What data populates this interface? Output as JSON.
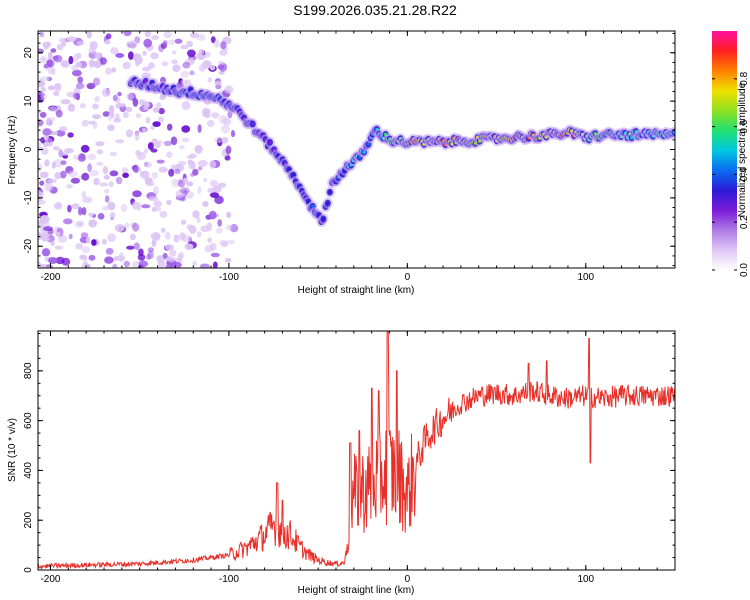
{
  "title": "S199.2026.035.21.28.R22",
  "colors": {
    "signal": "#e8302a",
    "colorscale": [
      "#ffffff",
      "#e0c6f6",
      "#b07ae8",
      "#7a1bd8",
      "#2a1bd8",
      "#0a6cf0",
      "#00c8e0",
      "#20e070",
      "#90e020",
      "#f0e000",
      "#ff8000",
      "#ff2020",
      "#ff10a0"
    ]
  },
  "chart_data": [
    {
      "type": "heatmap",
      "xlabel": "Height of straight line (km)",
      "ylabel": "Frequency (Hz)",
      "xlim": [
        -207,
        150
      ],
      "ylim": [
        -24.5,
        24.5
      ],
      "xticks": [
        -200,
        -100,
        0,
        100
      ],
      "xtick_labels": [
        "-200",
        "-100",
        "0",
        "100"
      ],
      "yticks": [
        20,
        10,
        0,
        -10,
        -20
      ],
      "ytick_labels": [
        "20",
        "10",
        "0",
        "-10",
        "-20"
      ],
      "colorbar": {
        "label": "Normalized spectral amplitude",
        "range": [
          0,
          1
        ],
        "ticks": [
          0.0,
          0.2,
          0.4,
          0.6,
          0.8
        ],
        "tick_labels": [
          "0.0",
          "0.2",
          "0.4",
          "0.6",
          "0.8"
        ]
      },
      "ridge": {
        "x": [
          -155,
          -140,
          -128,
          -115,
          -105,
          -95,
          -85,
          -75,
          -65,
          -58,
          -52,
          -48,
          -42,
          -35,
          -28,
          -22,
          -18,
          -10,
          0,
          20,
          40,
          60,
          80,
          90,
          100,
          110,
          130,
          150
        ],
        "y": [
          14,
          13,
          12,
          11.5,
          10.5,
          8,
          4,
          0,
          -5,
          -9,
          -13,
          -15,
          -7,
          -4,
          -2,
          1,
          4,
          2,
          1.5,
          1.5,
          2,
          2.5,
          3,
          3.5,
          2.5,
          3,
          3,
          3
        ],
        "amplitude": [
          0.35,
          0.3,
          0.35,
          0.4,
          0.35,
          0.3,
          0.25,
          0.3,
          0.35,
          0.35,
          0.35,
          0.3,
          0.35,
          0.4,
          0.55,
          0.5,
          0.45,
          0.6,
          0.8,
          0.85,
          0.75,
          0.8,
          0.85,
          0.9,
          0.7,
          0.55,
          0.55,
          0.5
        ]
      }
    },
    {
      "type": "line",
      "xlabel": "Height of straight line (km)",
      "ylabel": "SNR (10 * v/v)",
      "xlim": [
        -207,
        150
      ],
      "ylim": [
        0,
        960
      ],
      "xticks": [
        -200,
        -100,
        0,
        100
      ],
      "xtick_labels": [
        "-200",
        "-100",
        "0",
        "100"
      ],
      "yticks": [
        0,
        200,
        400,
        600,
        800
      ],
      "ytick_labels": [
        "0",
        "200",
        "400",
        "600",
        "800"
      ],
      "series": [
        {
          "name": "SNR",
          "x": [
            -207,
            -180,
            -150,
            -120,
            -100,
            -90,
            -80,
            -75,
            -70,
            -65,
            -60,
            -55,
            -50,
            -45,
            -40,
            -35,
            -33,
            -30,
            -25,
            -20,
            -15,
            -10,
            -5,
            0,
            5,
            10,
            15,
            20,
            30,
            40,
            50,
            60,
            70,
            80,
            90,
            100,
            110,
            120,
            130,
            140,
            150
          ],
          "y": [
            15,
            20,
            25,
            40,
            60,
            90,
            140,
            180,
            150,
            140,
            90,
            60,
            40,
            30,
            25,
            30,
            150,
            300,
            320,
            340,
            380,
            400,
            380,
            300,
            430,
            520,
            570,
            610,
            670,
            700,
            710,
            700,
            720,
            700,
            690,
            700,
            690,
            700,
            700,
            700,
            700
          ],
          "spikes": [
            {
              "x": -73,
              "y": 350
            },
            {
              "x": -70,
              "y": 280
            },
            {
              "x": -32,
              "y": 510
            },
            {
              "x": -27,
              "y": 560
            },
            {
              "x": -20,
              "y": 730
            },
            {
              "x": -16,
              "y": 720
            },
            {
              "x": -11,
              "y": 960
            },
            {
              "x": -6,
              "y": 800
            },
            {
              "x": 68,
              "y": 830
            },
            {
              "x": 78,
              "y": 840
            },
            {
              "x": 102,
              "y": 930
            },
            {
              "x": 102.5,
              "y": 430
            }
          ]
        }
      ]
    }
  ]
}
